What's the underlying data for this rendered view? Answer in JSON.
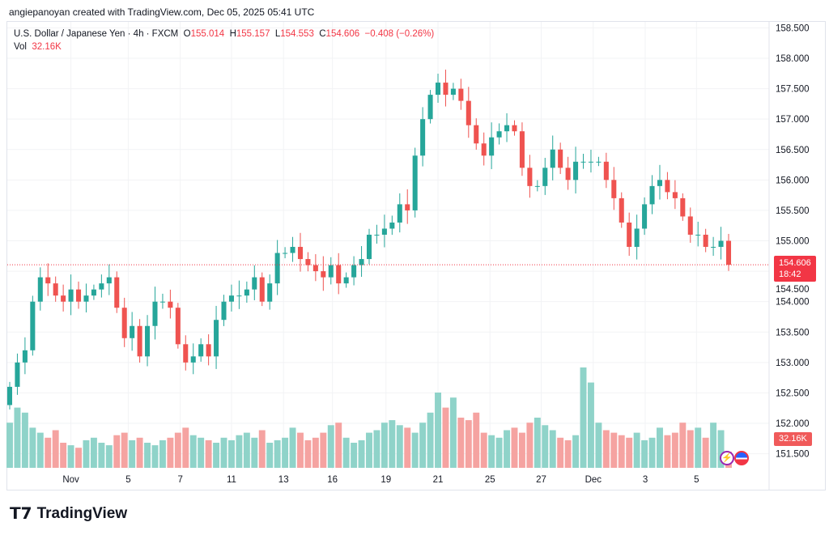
{
  "credit": "angiepanoyan created with TradingView.com, Dec 05, 2025 05:41 UTC",
  "legend": {
    "symbol": "U.S. Dollar / Japanese Yen · 4h · FXCM",
    "o_label": "O",
    "o": "155.014",
    "h_label": "H",
    "h": "155.157",
    "l_label": "L",
    "l": "154.553",
    "c_label": "C",
    "c": "154.606",
    "change": "−0.408 (−0.26%)",
    "vol_label": "Vol",
    "vol": "32.16K"
  },
  "price_tag": {
    "price": "154.606",
    "countdown": "18:42"
  },
  "vol_tag": "32.16K",
  "brand": "TradingView",
  "colors": {
    "up": "#26a69a",
    "down": "#ef5350",
    "up_vol": "#8fd3c9",
    "down_vol": "#f5a3a1"
  },
  "chart_data": {
    "type": "candlestick",
    "title": "U.S. Dollar / Japanese Yen · 4h · FXCM",
    "ylim": [
      151.3,
      158.7
    ],
    "y_ticks": [
      "158.500",
      "158.000",
      "157.500",
      "157.000",
      "156.500",
      "156.000",
      "155.500",
      "155.000",
      "154.500",
      "154.000",
      "153.500",
      "153.000",
      "152.500",
      "152.000",
      "151.500"
    ],
    "x_ticks": [
      {
        "label": "Nov",
        "i": 8
      },
      {
        "label": "5",
        "i": 15.5
      },
      {
        "label": "7",
        "i": 22.3
      },
      {
        "label": "11",
        "i": 29
      },
      {
        "label": "13",
        "i": 35.8
      },
      {
        "label": "16",
        "i": 42.2
      },
      {
        "label": "19",
        "i": 49.2
      },
      {
        "label": "21",
        "i": 56
      },
      {
        "label": "25",
        "i": 62.8
      },
      {
        "label": "27",
        "i": 69.5
      },
      {
        "label": "Dec",
        "i": 76.3
      },
      {
        "label": "3",
        "i": 83.1
      },
      {
        "label": "5",
        "i": 89.8
      }
    ],
    "first_open": 152.3,
    "closes": [
      152.6,
      153.0,
      153.2,
      154.0,
      154.4,
      154.3,
      154.1,
      154.0,
      154.2,
      154.0,
      154.1,
      154.2,
      154.3,
      154.4,
      153.9,
      153.4,
      153.6,
      153.1,
      153.6,
      154.0,
      154.0,
      153.9,
      153.3,
      153.0,
      153.1,
      153.3,
      153.1,
      153.7,
      154.0,
      154.1,
      154.1,
      154.2,
      154.4,
      154.0,
      154.3,
      154.8,
      154.8,
      154.9,
      154.7,
      154.6,
      154.5,
      154.4,
      154.6,
      154.3,
      154.4,
      154.6,
      154.7,
      155.1,
      155.1,
      155.2,
      155.3,
      155.6,
      155.5,
      156.4,
      157.0,
      157.4,
      157.6,
      157.4,
      157.5,
      157.3,
      156.9,
      156.6,
      156.4,
      156.7,
      156.8,
      156.9,
      156.8,
      156.2,
      155.9,
      155.9,
      156.2,
      156.5,
      156.2,
      156.0,
      156.3,
      156.3,
      156.3,
      156.3,
      156.0,
      155.7,
      155.3,
      154.9,
      155.2,
      155.6,
      155.9,
      156.0,
      155.8,
      155.7,
      155.4,
      155.1,
      155.1,
      154.9,
      154.9,
      155.0,
      154.606
    ],
    "volumes_k": [
      90,
      120,
      110,
      80,
      70,
      60,
      75,
      50,
      45,
      40,
      55,
      60,
      50,
      45,
      65,
      70,
      55,
      60,
      50,
      45,
      55,
      60,
      70,
      80,
      65,
      60,
      55,
      50,
      60,
      55,
      65,
      70,
      60,
      75,
      50,
      55,
      60,
      80,
      70,
      55,
      60,
      70,
      85,
      90,
      60,
      50,
      55,
      70,
      75,
      90,
      95,
      85,
      80,
      70,
      90,
      110,
      150,
      120,
      140,
      100,
      95,
      110,
      70,
      65,
      60,
      75,
      80,
      70,
      90,
      100,
      85,
      75,
      60,
      55,
      65,
      200,
      170,
      90,
      75,
      70,
      65,
      60,
      70,
      55,
      60,
      80,
      65,
      70,
      90,
      75,
      80,
      60,
      90,
      75,
      32.16
    ]
  }
}
